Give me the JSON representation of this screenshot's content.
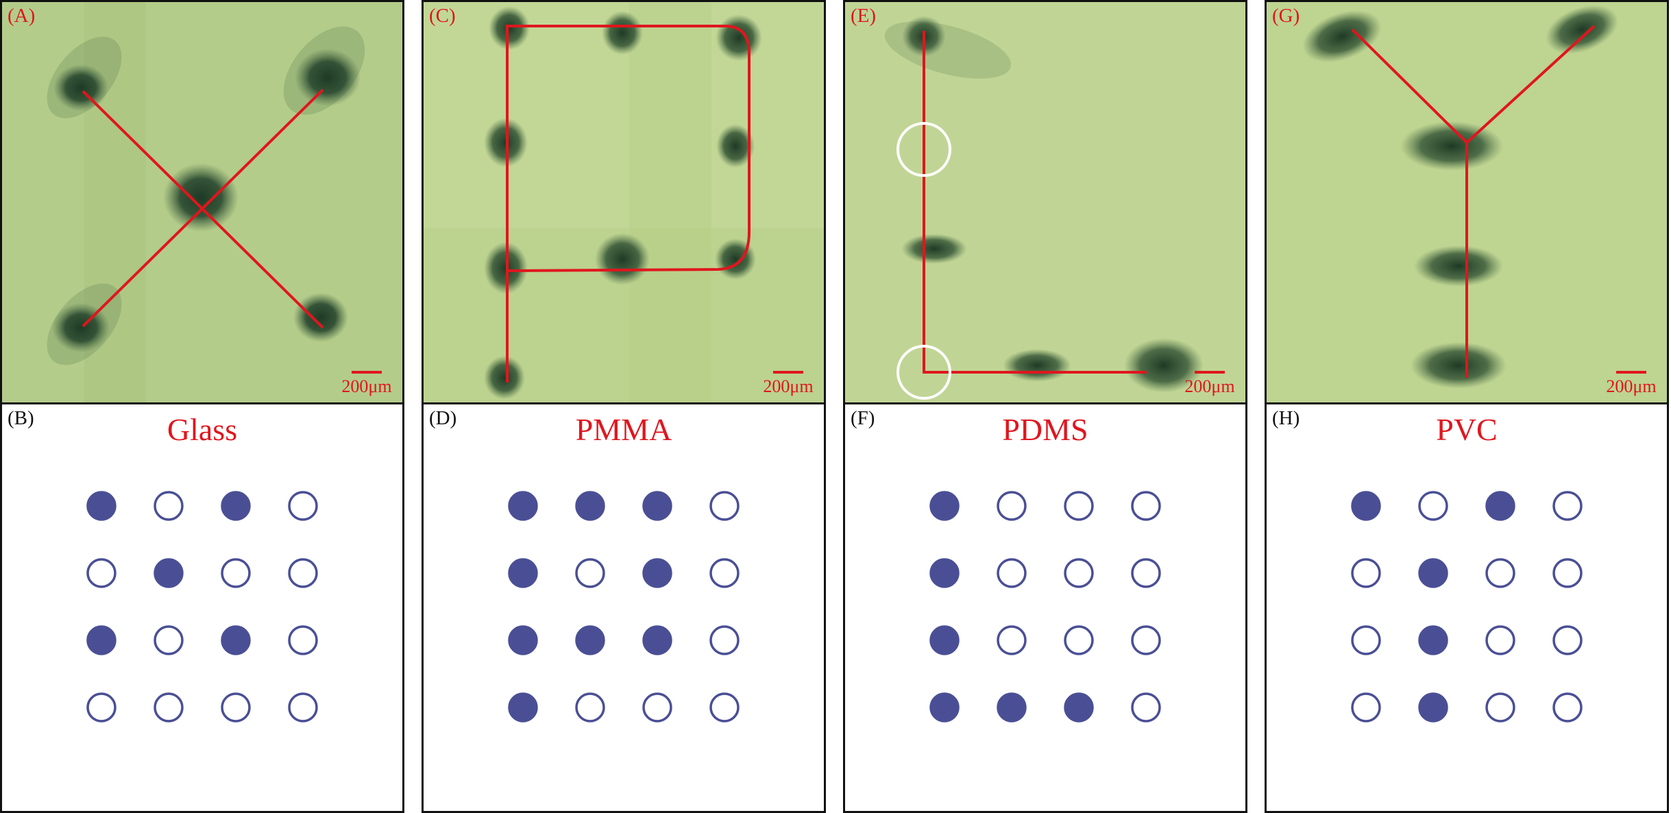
{
  "colors": {
    "accent": "#e0161e",
    "dot": "#4a4f95",
    "photo_bg": "#b8cf8e"
  },
  "panels": [
    {
      "photo_label": "(A)",
      "diagram_label": "(B)",
      "material": "Glass",
      "letter": "X",
      "scale": "200μm",
      "grid": [
        [
          1,
          0,
          1,
          0
        ],
        [
          0,
          1,
          0,
          0
        ],
        [
          1,
          0,
          1,
          0
        ],
        [
          0,
          0,
          0,
          0
        ]
      ]
    },
    {
      "photo_label": "(C)",
      "diagram_label": "(D)",
      "material": "PMMA",
      "letter": "P",
      "scale": "200μm",
      "grid": [
        [
          1,
          1,
          1,
          0
        ],
        [
          1,
          0,
          1,
          0
        ],
        [
          1,
          1,
          1,
          0
        ],
        [
          1,
          0,
          0,
          0
        ]
      ]
    },
    {
      "photo_label": "(E)",
      "diagram_label": "(F)",
      "material": "PDMS",
      "letter": "L",
      "scale": "200μm",
      "grid": [
        [
          1,
          0,
          0,
          0
        ],
        [
          1,
          0,
          0,
          0
        ],
        [
          1,
          0,
          0,
          0
        ],
        [
          1,
          1,
          1,
          0
        ]
      ]
    },
    {
      "photo_label": "(G)",
      "diagram_label": "(H)",
      "material": "PVC",
      "letter": "Y",
      "scale": "200μm",
      "grid": [
        [
          1,
          0,
          1,
          0
        ],
        [
          0,
          1,
          0,
          0
        ],
        [
          0,
          1,
          0,
          0
        ],
        [
          0,
          1,
          0,
          0
        ]
      ]
    }
  ]
}
